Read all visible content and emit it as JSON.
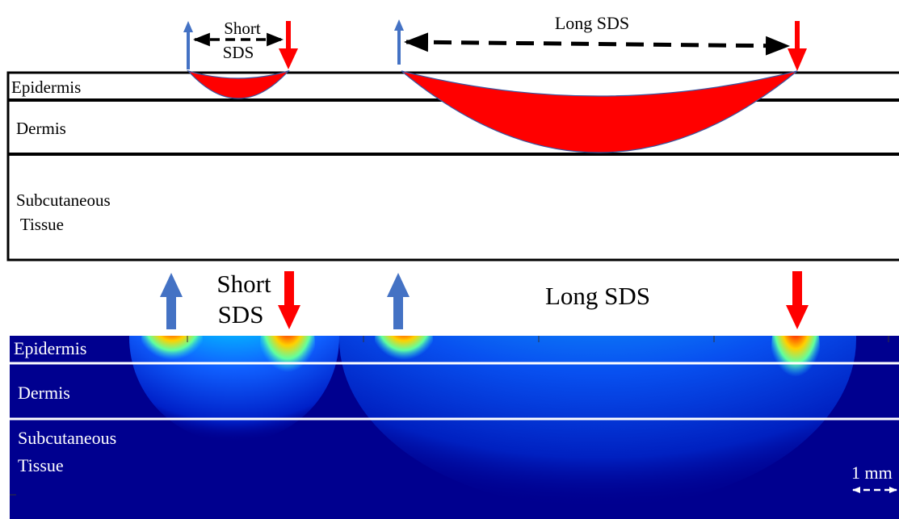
{
  "schematic": {
    "short_sds_label": [
      "Short",
      "SDS"
    ],
    "long_sds_label": "Long SDS",
    "layers": {
      "epidermis": "Epidermis",
      "dermis": "Dermis",
      "subcutaneous": [
        "Subcutaneous",
        " Tissue"
      ]
    }
  },
  "simulation": {
    "short_sds_label": [
      "Short",
      "SDS"
    ],
    "long_sds_label": "Long SDS",
    "layers": {
      "epidermis": "Epidermis",
      "dermis": "Dermis",
      "subcutaneous": [
        "Subcutaneous",
        "Tissue"
      ]
    },
    "scale_bar": "1 mm"
  }
}
